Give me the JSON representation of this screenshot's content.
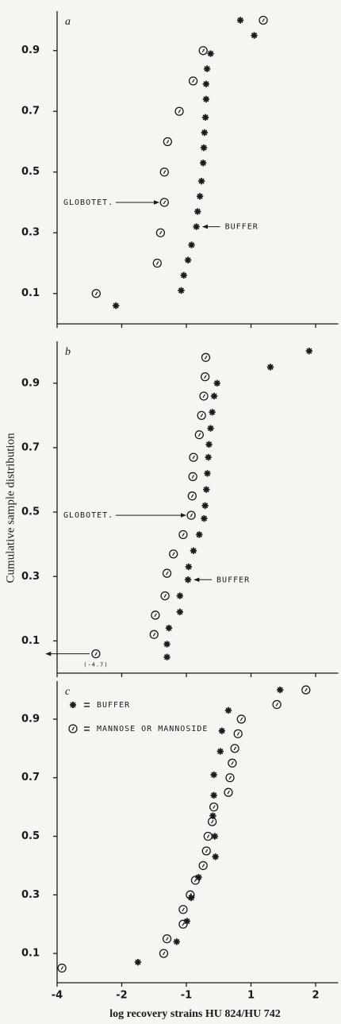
{
  "figure": {
    "ylabel": "Cumulative sample distribution",
    "xlabel": "log recovery strains HU 824/HU 742"
  },
  "chart_data": [
    {
      "type": "scatter",
      "label": "a",
      "xlim": [
        -4,
        2.35
      ],
      "xticks": [
        -4,
        -2,
        -1,
        1,
        2
      ],
      "show_xtick_labels": false,
      "ylim": [
        0,
        1.03
      ],
      "yticks": [
        0.1,
        0.3,
        0.5,
        0.7,
        0.9
      ],
      "color": "#1a1a1a",
      "legend": false,
      "annotations": [
        "GLOBOTET.",
        "BUFFER"
      ],
      "series": [
        {
          "marker": "asterisk",
          "x": [
            -2.18,
            -1.08,
            -1.04,
            -0.95,
            -0.84,
            -0.69,
            -0.65,
            -0.58,
            -0.53,
            -0.48,
            -0.46,
            -0.44,
            -0.41,
            -0.39,
            -0.39,
            -0.36,
            -0.25,
            1.05,
            0.67
          ],
          "values": [
            0.06,
            0.11,
            0.16,
            0.21,
            0.26,
            0.32,
            0.37,
            0.42,
            0.47,
            0.53,
            0.58,
            0.63,
            0.68,
            0.74,
            0.79,
            0.84,
            0.89,
            0.95,
            1.0
          ]
        },
        {
          "marker": "circle",
          "x": [
            -2.79,
            -1.45,
            -1.4,
            -1.34,
            -1.34,
            -1.29,
            -1.11,
            -0.79,
            -0.48,
            1.19
          ],
          "values": [
            0.1,
            0.2,
            0.3,
            0.4,
            0.5,
            0.6,
            0.7,
            0.8,
            0.9,
            1.0
          ]
        }
      ]
    },
    {
      "type": "scatter",
      "label": "b",
      "xlim": [
        -4,
        2.35
      ],
      "xticks": [
        -4,
        -2,
        -1,
        1,
        2
      ],
      "show_xtick_labels": false,
      "ylim": [
        0,
        1.03
      ],
      "yticks": [
        0.1,
        0.3,
        0.5,
        0.7,
        0.9
      ],
      "color": "#1a1a1a",
      "legend": false,
      "annotations": [
        "GLOBOTET.",
        "BUFFER",
        "(-4.7)"
      ],
      "series": [
        {
          "marker": "asterisk",
          "x": [
            -1.3,
            -1.3,
            -1.27,
            -1.1,
            -1.1,
            -0.95,
            -0.93,
            -0.78,
            -0.6,
            -0.45,
            -0.42,
            -0.38,
            -0.35,
            -0.32,
            -0.3,
            -0.25,
            -0.2,
            -0.14,
            -0.05,
            1.3,
            1.9
          ],
          "values": [
            0.05,
            0.09,
            0.14,
            0.19,
            0.24,
            0.29,
            0.33,
            0.38,
            0.43,
            0.48,
            0.52,
            0.57,
            0.62,
            0.67,
            0.71,
            0.76,
            0.81,
            0.86,
            0.9,
            0.95,
            1.0
          ]
        },
        {
          "marker": "circle",
          "x": [
            -2.8,
            -1.5,
            -1.48,
            -1.33,
            -1.3,
            -1.2,
            -1.05,
            -0.85,
            -0.82,
            -0.8,
            -0.78,
            -0.6,
            -0.53,
            -0.46,
            -0.42,
            -0.4
          ],
          "values": [
            0.06,
            0.12,
            0.18,
            0.24,
            0.31,
            0.37,
            0.43,
            0.49,
            0.55,
            0.61,
            0.67,
            0.74,
            0.8,
            0.86,
            0.92,
            0.98
          ]
        }
      ]
    },
    {
      "type": "scatter",
      "label": "c",
      "xlim": [
        -4,
        2.35
      ],
      "xticks": [
        -4,
        -2,
        -1,
        1,
        2
      ],
      "show_xtick_labels": true,
      "ylim": [
        0,
        1.03
      ],
      "yticks": [
        0.1,
        0.3,
        0.5,
        0.7,
        0.9
      ],
      "color": "#1a1a1a",
      "legend": true,
      "series": [
        {
          "name": "BUFFER",
          "marker": "asterisk",
          "x": [
            -1.75,
            -1.15,
            -0.98,
            -0.85,
            -0.62,
            -0.1,
            -0.12,
            -0.18,
            -0.15,
            -0.15,
            0.05,
            0.1,
            0.3,
            1.45
          ],
          "values": [
            0.07,
            0.14,
            0.21,
            0.29,
            0.36,
            0.43,
            0.5,
            0.57,
            0.64,
            0.71,
            0.79,
            0.86,
            0.93,
            1.0
          ]
        },
        {
          "name": "MANNOSE OR MANNOSIDE",
          "marker": "circle",
          "x": [
            -3.85,
            -1.35,
            -1.3,
            -1.05,
            -1.05,
            -0.88,
            -0.72,
            -0.48,
            -0.38,
            -0.33,
            -0.2,
            -0.15,
            0.3,
            0.35,
            0.42,
            0.5,
            0.6,
            0.7,
            1.4,
            1.85
          ],
          "values": [
            0.05,
            0.1,
            0.15,
            0.2,
            0.25,
            0.3,
            0.35,
            0.4,
            0.45,
            0.5,
            0.55,
            0.6,
            0.65,
            0.7,
            0.75,
            0.8,
            0.85,
            0.9,
            0.95,
            1.0
          ]
        }
      ]
    }
  ]
}
